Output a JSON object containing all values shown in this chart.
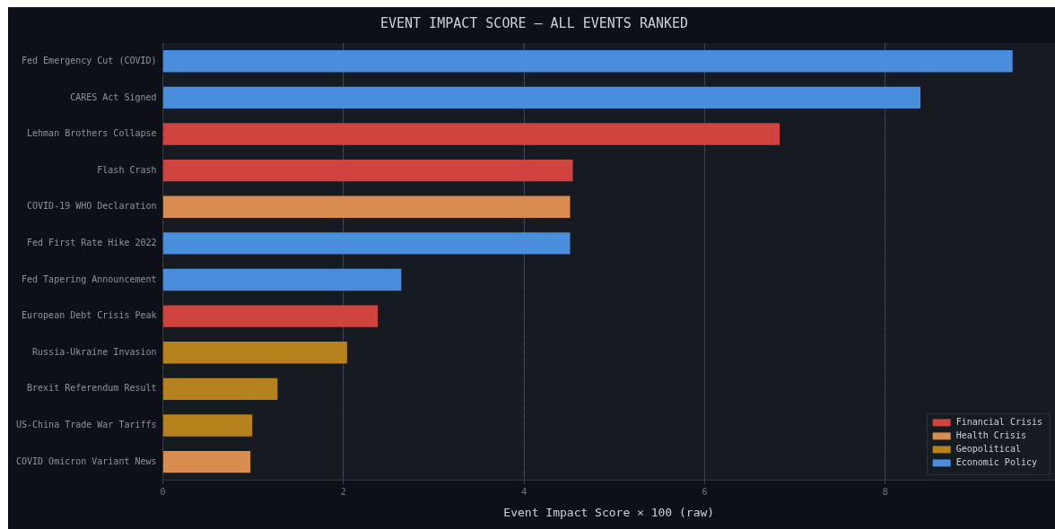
{
  "chart_data": {
    "type": "bar",
    "orientation": "horizontal",
    "stacked": true,
    "title": "EVENT IMPACT SCORE — ALL EVENTS RANKED",
    "xlabel": "Event Impact Score × 100 (raw)",
    "categories": [
      "Fed Emergency Cut (COVID)",
      "CARES Act Signed",
      "Lehman Brothers Collapse",
      "Flash Crash",
      "COVID-19 WHO Declaration",
      "Fed First Rate Hike 2022",
      "Fed Tapering Announcement",
      "European Debt Crisis Peak",
      "Russia-Ukraine Invasion",
      "Brexit Referendum Result",
      "US-China Trade War Tariffs",
      "COVID Omicron Variant News"
    ],
    "series": [
      {
        "name": "Financial Crisis",
        "color": "#d04440",
        "values": [
          null,
          null,
          6.83,
          4.54,
          null,
          null,
          null,
          2.38,
          null,
          null,
          null,
          null
        ]
      },
      {
        "name": "Health Crisis",
        "color": "#d98c50",
        "values": [
          null,
          null,
          null,
          null,
          4.51,
          null,
          null,
          null,
          null,
          null,
          null,
          0.97
        ]
      },
      {
        "name": "Geopolitical",
        "color": "#b5821e",
        "values": [
          null,
          null,
          null,
          null,
          null,
          null,
          null,
          null,
          2.04,
          1.27,
          0.99,
          null
        ]
      },
      {
        "name": "Economic Policy",
        "color": "#4a8ddc",
        "values": [
          9.41,
          8.39,
          null,
          null,
          null,
          4.51,
          2.64,
          null,
          null,
          null,
          null,
          null
        ]
      }
    ],
    "xlim": [
      0,
      9.88
    ],
    "xticks": [
      0,
      2,
      4,
      6,
      8
    ],
    "grid": "x",
    "legend": "bottom right"
  }
}
